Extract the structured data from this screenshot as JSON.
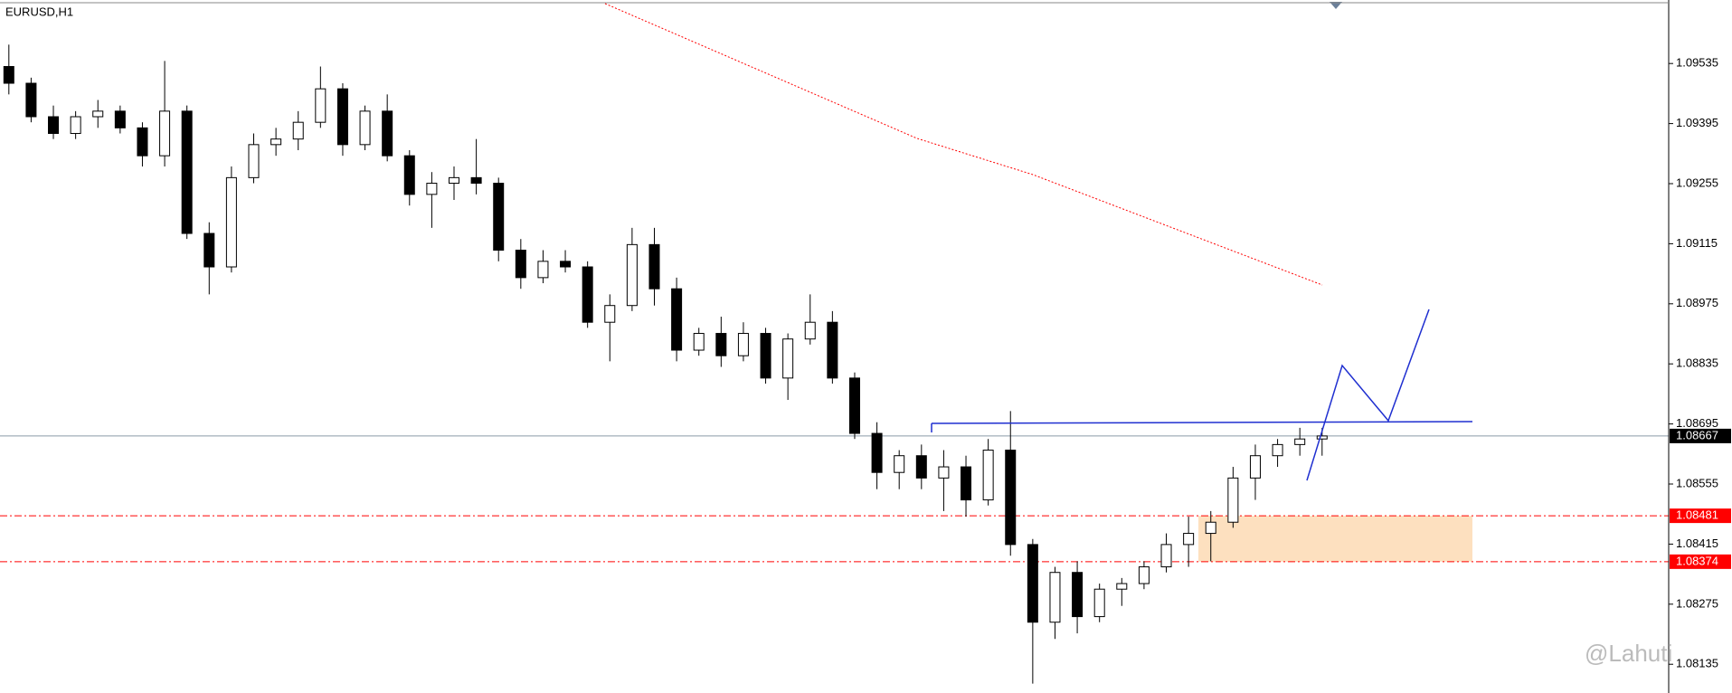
{
  "chart_data": {
    "type": "candlestick",
    "title": "EURUSD,H1",
    "open": [
      1.09528,
      1.09489,
      1.09411,
      1.09372,
      1.09411,
      1.09424,
      1.09385,
      1.0932,
      1.09424,
      1.09139,
      1.09061,
      1.09269,
      1.09346,
      1.09359,
      1.09398,
      1.09476,
      1.09346,
      1.09424,
      1.0932,
      1.0923,
      1.09256,
      1.09269,
      1.09256,
      1.091,
      1.09036,
      1.09074,
      1.09061,
      1.08932,
      1.08971,
      1.09113,
      1.0901,
      1.08867,
      1.08906,
      1.08854,
      1.08906,
      1.08802,
      1.08893,
      1.08932,
      1.08802,
      1.08673,
      1.08582,
      1.08621,
      1.08569,
      1.08595,
      1.08518,
      1.08634,
      1.08414,
      1.08233,
      1.08349,
      1.08246,
      1.0831,
      1.08323,
      1.08362,
      1.08414,
      1.0844,
      1.08466,
      1.08569,
      1.08621,
      1.08647,
      1.0866
    ],
    "high": [
      1.09579,
      1.09502,
      1.09437,
      1.09424,
      1.0945,
      1.09437,
      1.09398,
      1.09541,
      1.09437,
      1.09165,
      1.09295,
      1.09372,
      1.09385,
      1.09424,
      1.09528,
      1.09489,
      1.09437,
      1.09463,
      1.09333,
      1.09282,
      1.09295,
      1.09359,
      1.09269,
      1.09126,
      1.091,
      1.091,
      1.09074,
      1.08997,
      1.09152,
      1.09152,
      1.09036,
      1.08919,
      1.08945,
      1.08932,
      1.08919,
      1.08906,
      1.08997,
      1.08958,
      1.08815,
      1.08699,
      1.08634,
      1.08647,
      1.08634,
      1.08621,
      1.0866,
      1.08725,
      1.08427,
      1.08362,
      1.08375,
      1.08323,
      1.08336,
      1.08375,
      1.0844,
      1.08479,
      1.08492,
      1.08595,
      1.08647,
      1.0866,
      1.08686,
      1.08686
    ],
    "low": [
      1.09463,
      1.09398,
      1.09359,
      1.09359,
      1.09385,
      1.09372,
      1.09295,
      1.09295,
      1.09126,
      1.08997,
      1.09048,
      1.09256,
      1.0932,
      1.09333,
      1.09385,
      1.0932,
      1.09333,
      1.09307,
      1.09204,
      1.09152,
      1.09217,
      1.0923,
      1.09074,
      1.0901,
      1.09023,
      1.09048,
      1.08919,
      1.08841,
      1.08958,
      1.08971,
      1.08841,
      1.08854,
      1.08828,
      1.08841,
      1.08789,
      1.08751,
      1.0888,
      1.08789,
      1.0866,
      1.08543,
      1.08543,
      1.08543,
      1.08492,
      1.08479,
      1.08505,
      1.08388,
      1.0809,
      1.08194,
      1.08207,
      1.08233,
      1.08271,
      1.0831,
      1.08349,
      1.08362,
      1.08375,
      1.08453,
      1.08518,
      1.08595,
      1.08621,
      1.08621
    ],
    "close": [
      1.09489,
      1.09411,
      1.09372,
      1.09411,
      1.09424,
      1.09385,
      1.0932,
      1.09424,
      1.09139,
      1.09061,
      1.09269,
      1.09346,
      1.09359,
      1.09398,
      1.09476,
      1.09346,
      1.09424,
      1.0932,
      1.0923,
      1.09256,
      1.09269,
      1.09256,
      1.091,
      1.09036,
      1.09074,
      1.09061,
      1.08932,
      1.08971,
      1.09113,
      1.0901,
      1.08867,
      1.08906,
      1.08854,
      1.08906,
      1.08802,
      1.08893,
      1.08932,
      1.08802,
      1.08673,
      1.08582,
      1.08621,
      1.08569,
      1.08595,
      1.08518,
      1.08634,
      1.08414,
      1.08233,
      1.08349,
      1.08246,
      1.0831,
      1.08323,
      1.08362,
      1.08414,
      1.0844,
      1.08466,
      1.08569,
      1.08621,
      1.08647,
      1.0866,
      1.08667
    ],
    "up_color": "#ffffff",
    "down_color": "#000000",
    "ylim": [
      1.08068,
      1.09683
    ],
    "yticks": [
      1.09535,
      1.09395,
      1.09255,
      1.09115,
      1.08975,
      1.08835,
      1.08695,
      1.08555,
      1.08415,
      1.08275,
      1.08135
    ],
    "levels": [
      {
        "value": 1.08667,
        "color": "#000000"
      },
      {
        "value": 1.08481,
        "color": "#ff0000"
      },
      {
        "value": 1.08374,
        "color": "#ff0000"
      }
    ],
    "zone_color": "#fde0bf",
    "watermark": "@Lahuti"
  }
}
